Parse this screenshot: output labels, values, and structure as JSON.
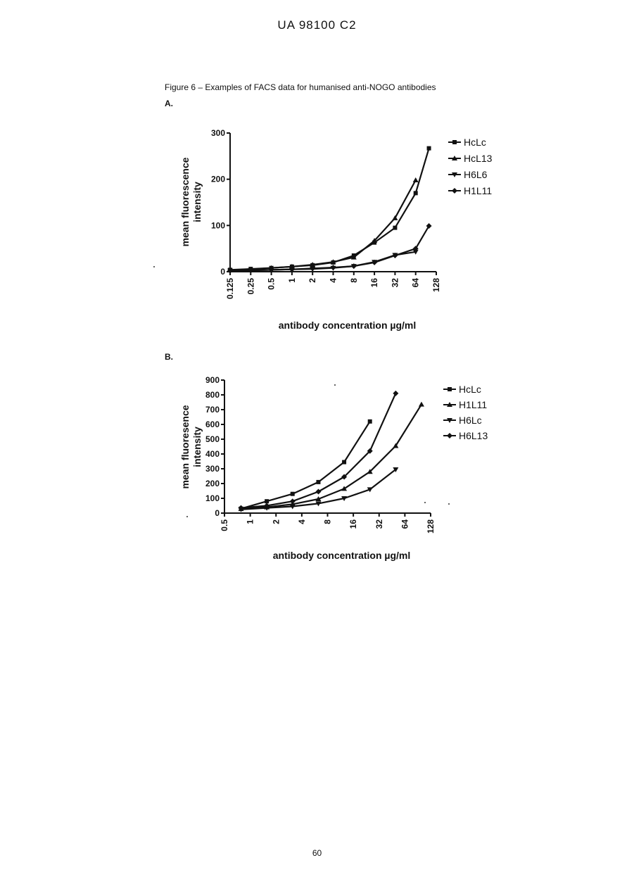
{
  "header": {
    "doc_id": "UA  98100  C2"
  },
  "caption": "Figure 6 – Examples of FACS data for humanised anti-NOGO antibodies",
  "page_number": "60",
  "chart_data": [
    {
      "label": "A.",
      "type": "line",
      "xscale": "log2",
      "xlabel": "antibody concentration µg/ml",
      "ylabel": [
        "mean fluorescence",
        "intensity"
      ],
      "ylim": [
        0,
        300
      ],
      "yticks": [
        0,
        100,
        200,
        300
      ],
      "xlim": [
        0.125,
        128
      ],
      "xticks": [
        0.125,
        0.25,
        0.5,
        1,
        2,
        4,
        8,
        16,
        32,
        64,
        128
      ],
      "xticklabels": [
        "0.125",
        "0.25",
        "0.5",
        "1",
        "2",
        "4",
        "8",
        "16",
        "32",
        "64",
        "128"
      ],
      "legend_position": "right",
      "series": [
        {
          "name": "HcLc",
          "marker": "square",
          "x": [
            0.125,
            0.25,
            0.5,
            1,
            2,
            4,
            8,
            16,
            32,
            64,
            100
          ],
          "y": [
            4,
            6,
            8,
            11,
            14,
            20,
            35,
            63,
            95,
            170,
            267
          ]
        },
        {
          "name": "HcL13",
          "marker": "triangle-up",
          "x": [
            0.125,
            0.25,
            0.5,
            1,
            2,
            4,
            8,
            16,
            32,
            64
          ],
          "y": [
            3,
            5,
            8,
            11,
            15,
            21,
            31,
            67,
            116,
            198
          ]
        },
        {
          "name": "H6L6",
          "marker": "triangle-down",
          "x": [
            0.125,
            0.25,
            0.5,
            1,
            2,
            4,
            8,
            16,
            32,
            64
          ],
          "y": [
            2,
            3,
            4,
            5,
            6,
            8,
            12,
            21,
            36,
            43
          ]
        },
        {
          "name": "H1L11",
          "marker": "diamond",
          "x": [
            0.125,
            0.25,
            0.5,
            1,
            2,
            4,
            8,
            16,
            32,
            64,
            100
          ],
          "y": [
            2,
            3,
            4,
            5,
            7,
            9,
            12,
            20,
            35,
            50,
            99
          ]
        }
      ]
    },
    {
      "label": "B.",
      "type": "line",
      "xscale": "log2",
      "xlabel": "antibody concentration µg/ml",
      "ylabel": [
        "mean fluoresence",
        "intensity"
      ],
      "ylim": [
        0,
        900
      ],
      "yticks": [
        0,
        100,
        200,
        300,
        400,
        500,
        600,
        700,
        800,
        900
      ],
      "xlim": [
        0.5,
        128
      ],
      "xticks": [
        0.5,
        1,
        2,
        4,
        8,
        16,
        32,
        64,
        128
      ],
      "xticklabels": [
        "0.5",
        "1",
        "2",
        "4",
        "8",
        "16",
        "32",
        "64",
        "128"
      ],
      "legend_position": "right",
      "series": [
        {
          "name": "HcLc",
          "marker": "square",
          "x": [
            0.78,
            1.56,
            3.12,
            6.25,
            12.5,
            25
          ],
          "y": [
            30,
            80,
            130,
            210,
            345,
            620
          ]
        },
        {
          "name": "H1L11",
          "marker": "triangle-up",
          "x": [
            0.78,
            1.56,
            3.12,
            6.25,
            12.5,
            25,
            50,
            100
          ],
          "y": [
            28,
            40,
            60,
            95,
            165,
            280,
            455,
            735
          ]
        },
        {
          "name": "H6Lc",
          "marker": "triangle-down",
          "x": [
            0.78,
            1.56,
            3.12,
            6.25,
            12.5,
            25,
            50
          ],
          "y": [
            25,
            35,
            45,
            65,
            100,
            160,
            295
          ]
        },
        {
          "name": "H6L13",
          "marker": "diamond",
          "x": [
            0.78,
            1.56,
            3.12,
            6.25,
            12.5,
            25,
            50
          ],
          "y": [
            35,
            50,
            80,
            145,
            245,
            420,
            810
          ]
        }
      ]
    }
  ]
}
